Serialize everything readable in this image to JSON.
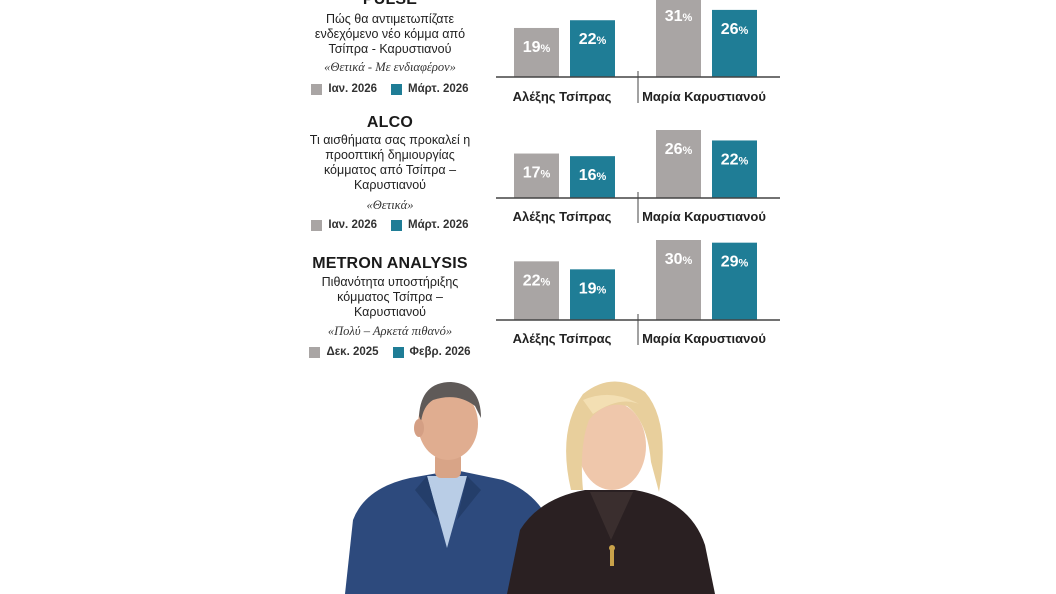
{
  "chart_data": [
    {
      "type": "bar",
      "pollster": "PULSE",
      "question": "Πώς θα αντιμετωπίζατε ενδεχόμενο νέο κόμμα από Τσίπρα - Καρυστιανού",
      "answer_note": "«Θετικά - Με ενδιαφέρον»",
      "categories": [
        "Αλέξης Τσίπρας",
        "Μαρία Καρυστιανού"
      ],
      "series": [
        {
          "name": "Ιαν. 2026",
          "values": [
            19,
            31
          ],
          "labels": [
            "19%",
            "31%"
          ]
        },
        {
          "name": "Μάρτ. 2026",
          "values": [
            22,
            26
          ],
          "labels": [
            "22%",
            "26%"
          ]
        }
      ],
      "ylim": [
        0,
        35
      ]
    },
    {
      "type": "bar",
      "pollster": "ALCO",
      "question": "Τι αισθήματα σας προκαλεί η προοπτική δημιουργίας κόμματος από Τσίπρα – Καρυστιανού",
      "answer_note": "«Θετικά»",
      "categories": [
        "Αλέξης Τσίπρας",
        "Μαρία Καρυστιανού"
      ],
      "series": [
        {
          "name": "Ιαν. 2026",
          "values": [
            17,
            26
          ],
          "labels": [
            "17%",
            "26%"
          ]
        },
        {
          "name": "Μάρτ. 2026",
          "values": [
            16,
            22
          ],
          "labels": [
            "16%",
            "22%"
          ]
        }
      ],
      "ylim": [
        0,
        35
      ]
    },
    {
      "type": "bar",
      "pollster": "METRON ANALYSIS",
      "question": "Πιθανότητα υποστήριξης κόμματος Τσίπρα – Καρυστιανού",
      "answer_note": "«Πολύ – Αρκετά πιθανό»",
      "categories": [
        "Αλέξης Τσίπρας",
        "Μαρία Καρυστιανού"
      ],
      "series": [
        {
          "name": "Δεκ. 2025",
          "values": [
            22,
            30
          ],
          "labels": [
            "22%",
            "30%"
          ]
        },
        {
          "name": "Φεβρ. 2026",
          "values": [
            19,
            29
          ],
          "labels": [
            "19%",
            "29%"
          ]
        }
      ],
      "ylim": [
        0,
        35
      ]
    }
  ],
  "colors": {
    "earlier": "#a9a5a4",
    "later": "#1f7d96",
    "axis": "#444444"
  }
}
